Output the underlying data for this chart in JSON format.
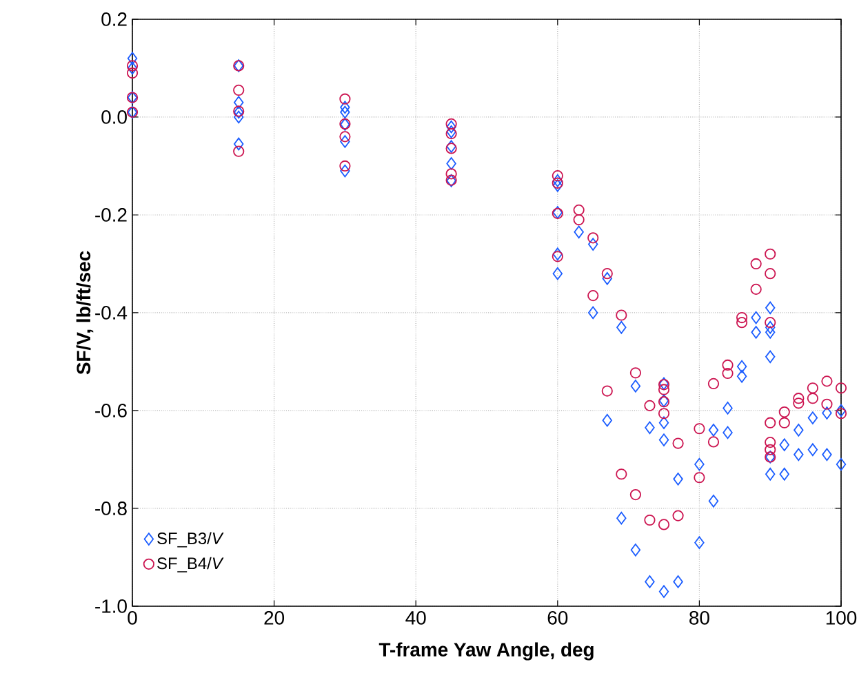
{
  "chart_data": {
    "type": "scatter",
    "xlabel": "T-frame Yaw Angle, deg",
    "ylabel": "SF/V, lb/ft/sec",
    "xlim": [
      0,
      100
    ],
    "ylim": [
      -1.0,
      0.2
    ],
    "xticks": [
      0,
      20,
      40,
      60,
      80,
      100
    ],
    "yticks": [
      {
        "value": 0.2,
        "label": "0.2"
      },
      {
        "value": 0.0,
        "label": "0.0"
      },
      {
        "value": -0.2,
        "label": "-0.2"
      },
      {
        "value": -0.4,
        "label": "-0.4"
      },
      {
        "value": -0.6,
        "label": "-0.6"
      },
      {
        "value": -0.8,
        "label": "-0.8"
      },
      {
        "value": -1.0,
        "label": "-1.0"
      }
    ],
    "grid": true,
    "legend": "bottom left",
    "series": [
      {
        "name": "SF_B3/*V*",
        "color": "#1a5cff",
        "marker": "diamond",
        "x": [
          0,
          0,
          0,
          0,
          15,
          15,
          15,
          15,
          15,
          30,
          30,
          30,
          30,
          30,
          45,
          45,
          45,
          45,
          45,
          60,
          60,
          60,
          60,
          60,
          63,
          65,
          65,
          67,
          67,
          69,
          69,
          71,
          71,
          73,
          73,
          75,
          75,
          75,
          75,
          75,
          77,
          77,
          80,
          80,
          82,
          82,
          84,
          84,
          86,
          86,
          88,
          88,
          90,
          90,
          90,
          90,
          90,
          90,
          92,
          92,
          94,
          94,
          96,
          96,
          98,
          98,
          100,
          100
        ],
        "values": [
          0.12,
          0.1,
          0.04,
          0.01,
          0.105,
          0.03,
          0.01,
          0.0,
          -0.055,
          0.02,
          0.01,
          -0.015,
          -0.05,
          -0.11,
          -0.02,
          -0.03,
          -0.06,
          -0.095,
          -0.13,
          -0.13,
          -0.14,
          -0.195,
          -0.28,
          -0.32,
          -0.235,
          -0.26,
          -0.4,
          -0.33,
          -0.62,
          -0.43,
          -0.82,
          -0.55,
          -0.885,
          -0.635,
          -0.95,
          -0.545,
          -0.58,
          -0.625,
          -0.66,
          -0.97,
          -0.74,
          -0.95,
          -0.71,
          -0.87,
          -0.64,
          -0.785,
          -0.595,
          -0.645,
          -0.51,
          -0.53,
          -0.41,
          -0.44,
          -0.39,
          -0.43,
          -0.44,
          -0.49,
          -0.695,
          -0.73,
          -0.67,
          -0.73,
          -0.64,
          -0.69,
          -0.615,
          -0.68,
          -0.605,
          -0.69,
          -0.6,
          -0.71
        ]
      },
      {
        "name": "SF_B4/*V*",
        "color": "#cc1450",
        "marker": "circle",
        "x": [
          0,
          0,
          0,
          0,
          15,
          15,
          15,
          15,
          30,
          30,
          30,
          30,
          45,
          45,
          45,
          45,
          45,
          60,
          60,
          60,
          60,
          63,
          63,
          65,
          65,
          67,
          67,
          69,
          69,
          71,
          71,
          73,
          73,
          75,
          75,
          75,
          75,
          75,
          77,
          77,
          80,
          80,
          82,
          82,
          84,
          84,
          86,
          86,
          88,
          88,
          90,
          90,
          90,
          90,
          90,
          90,
          90,
          92,
          92,
          94,
          94,
          96,
          96,
          98,
          98,
          100,
          100
        ],
        "values": [
          0.105,
          0.09,
          0.04,
          0.01,
          0.105,
          0.055,
          0.012,
          -0.07,
          0.037,
          -0.014,
          -0.04,
          -0.1,
          -0.014,
          -0.034,
          -0.064,
          -0.116,
          -0.129,
          -0.12,
          -0.135,
          -0.197,
          -0.285,
          -0.19,
          -0.21,
          -0.247,
          -0.365,
          -0.32,
          -0.56,
          -0.405,
          -0.73,
          -0.523,
          -0.772,
          -0.59,
          -0.824,
          -0.547,
          -0.557,
          -0.582,
          -0.606,
          -0.833,
          -0.667,
          -0.815,
          -0.637,
          -0.737,
          -0.545,
          -0.664,
          -0.507,
          -0.524,
          -0.41,
          -0.42,
          -0.3,
          -0.352,
          -0.28,
          -0.32,
          -0.42,
          -0.625,
          -0.665,
          -0.68,
          -0.695,
          -0.603,
          -0.625,
          -0.575,
          -0.585,
          -0.554,
          -0.575,
          -0.54,
          -0.587,
          -0.554,
          -0.606
        ]
      }
    ]
  }
}
